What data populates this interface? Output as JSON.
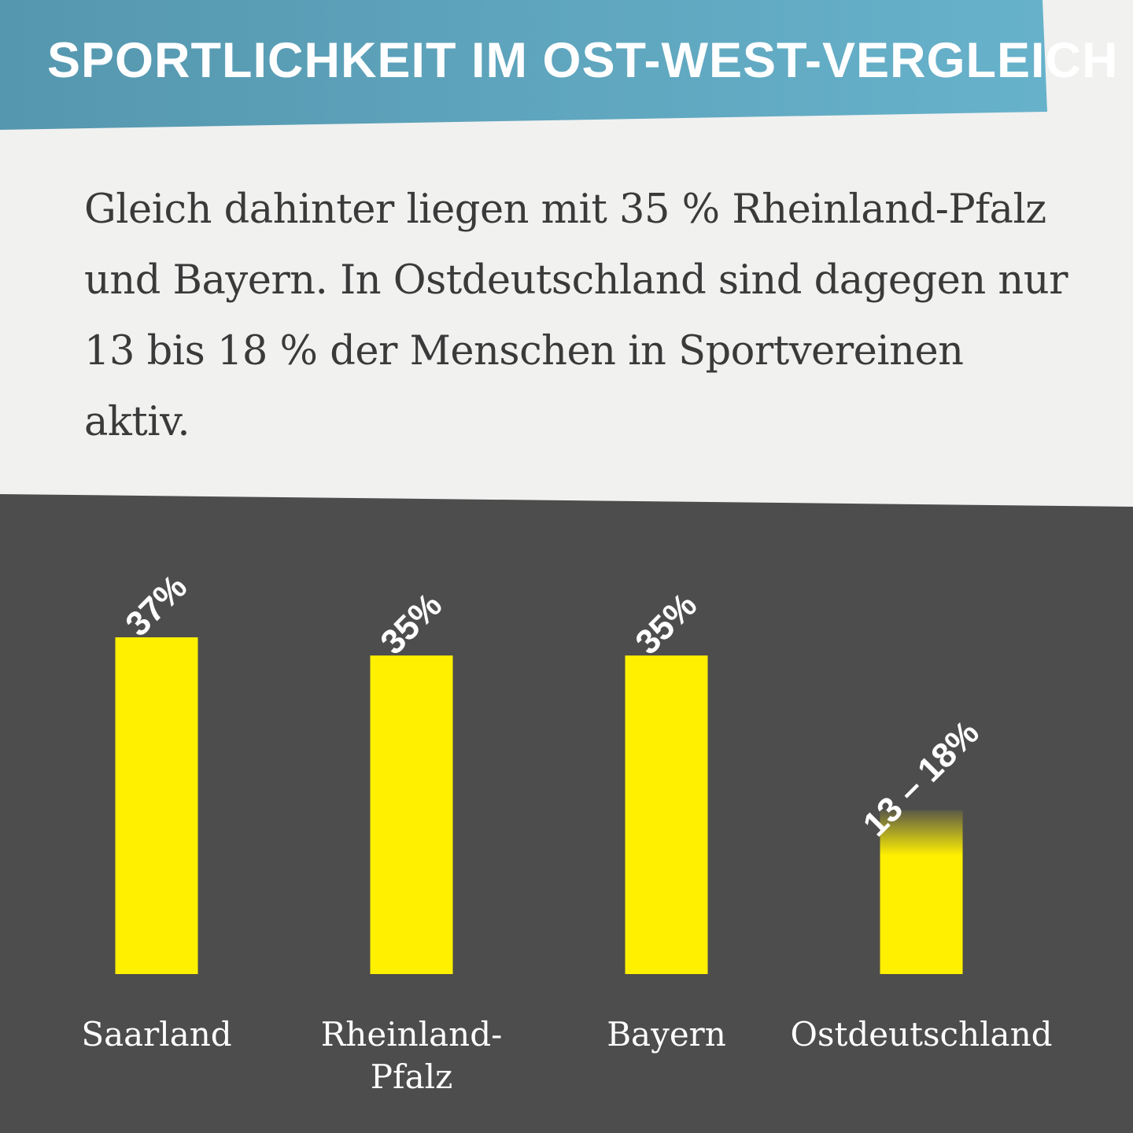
{
  "header": {
    "title": "SPORTLICHKEIT IM OST-WEST-VERGLEICH",
    "banner_colors": [
      "#5597ae",
      "#67b2cb"
    ]
  },
  "intro": {
    "text": "Gleich dahinter liegen mit 35 % Rheinland-Pfalz und Bayern. In Ostdeutschland sind dagegen nur 13 bis 18 % der Menschen in Sportvereinen aktiv."
  },
  "chart_data": {
    "type": "bar",
    "categories": [
      {
        "lines": [
          "Saarland"
        ]
      },
      {
        "lines": [
          "Rheinland-",
          "Pfalz"
        ]
      },
      {
        "lines": [
          "Bayern"
        ]
      },
      {
        "lines": [
          "Ostdeutschland"
        ]
      }
    ],
    "values": [
      37,
      35,
      35,
      18
    ],
    "value_low": [
      null,
      null,
      null,
      13
    ],
    "value_labels": [
      "37%",
      "35%",
      "35%",
      "13 – 18%"
    ],
    "ylim": [
      0,
      37
    ],
    "grid": false,
    "colors": {
      "bar": "#fff000",
      "panel": "#4d4d4d",
      "label": "#ffffff"
    }
  }
}
